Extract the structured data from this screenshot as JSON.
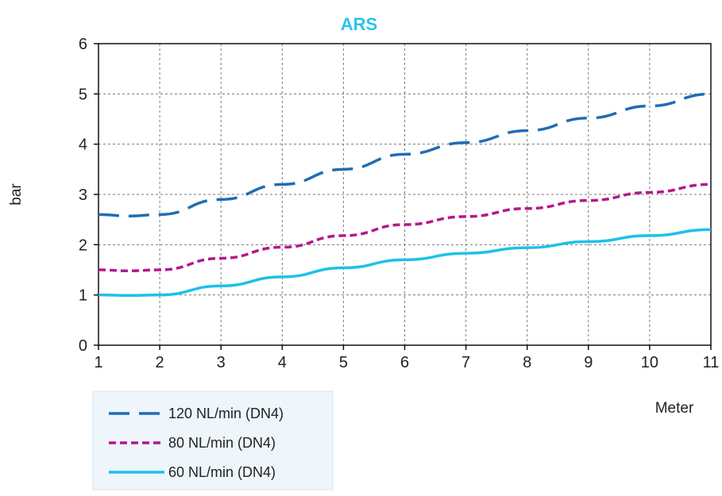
{
  "chart_data": {
    "type": "line",
    "title": "ARS",
    "xlabel": "Meter",
    "ylabel": "bar",
    "xlim": [
      1,
      11
    ],
    "ylim": [
      0,
      6
    ],
    "xticks": [
      "1",
      "2",
      "3",
      "4",
      "5",
      "6",
      "7",
      "8",
      "9",
      "10",
      "11"
    ],
    "yticks": [
      "0",
      "1",
      "2",
      "3",
      "4",
      "5",
      "6"
    ],
    "grid": true,
    "legend_position": "bottom-left",
    "series": [
      {
        "name": "120 NL/min (DN4)",
        "style": "long-dash",
        "color": "#1f6db5",
        "x": [
          1,
          1.5,
          2,
          3,
          4,
          5,
          6,
          7,
          8,
          9,
          10,
          11
        ],
        "y": [
          2.6,
          2.57,
          2.6,
          2.9,
          3.2,
          3.5,
          3.8,
          4.03,
          4.27,
          4.52,
          4.76,
          5.0
        ]
      },
      {
        "name": "80 NL/min (DN4)",
        "style": "short-dash",
        "color": "#b5178c",
        "x": [
          1,
          1.5,
          2,
          3,
          4,
          5,
          6,
          7,
          8,
          9,
          10,
          11
        ],
        "y": [
          1.5,
          1.48,
          1.5,
          1.73,
          1.95,
          2.18,
          2.4,
          2.56,
          2.72,
          2.88,
          3.04,
          3.2
        ]
      },
      {
        "name": "60 NL/min (DN4)",
        "style": "solid",
        "color": "#1ec0ea",
        "x": [
          1,
          1.5,
          2,
          3,
          4,
          5,
          6,
          7,
          8,
          9,
          10,
          11
        ],
        "y": [
          1.0,
          0.99,
          1.0,
          1.18,
          1.36,
          1.54,
          1.7,
          1.83,
          1.94,
          2.06,
          2.18,
          2.3
        ]
      }
    ]
  },
  "colors": {
    "title": "#29c3ee",
    "grid": "#7a7a7a",
    "axis": "#111111"
  }
}
